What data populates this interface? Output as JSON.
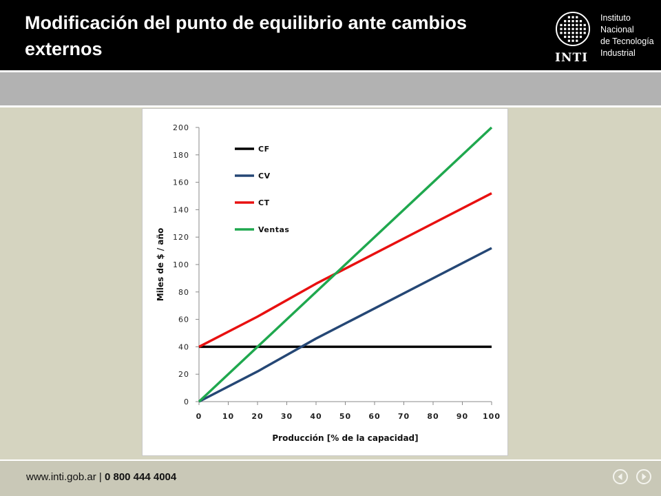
{
  "slide": {
    "title_line1": "Modificación del punto de equilibrio ante cambios",
    "title_line2": "externos"
  },
  "logo": {
    "mark": "INTI",
    "name_lines": [
      "Instituto",
      "Nacional",
      "de Tecnología",
      "Industrial"
    ]
  },
  "footer": {
    "url": "www.inti.gob.ar",
    "separator": "|",
    "phone": "0 800 444 4004",
    "prev_icon": "chevron-left-circle-icon",
    "next_icon": "chevron-right-circle-icon"
  },
  "chart_data": {
    "type": "line",
    "title": "",
    "xlabel": "Producción [% de la capacidad]",
    "ylabel": "Miles de $ / año",
    "xlim": [
      0,
      100
    ],
    "ylim": [
      0,
      200
    ],
    "x_ticks": [
      0,
      10,
      20,
      30,
      40,
      50,
      60,
      70,
      80,
      90,
      100
    ],
    "y_ticks": [
      0,
      20,
      40,
      60,
      80,
      100,
      120,
      140,
      160,
      180,
      200
    ],
    "grid": false,
    "legend_position": "top-left",
    "series": [
      {
        "name": "CF",
        "color": "#000000",
        "x": [
          0,
          100
        ],
        "y": [
          40,
          40
        ]
      },
      {
        "name": "CV",
        "color": "#254775",
        "x": [
          0,
          20,
          40,
          100
        ],
        "y": [
          0,
          22,
          46,
          112
        ]
      },
      {
        "name": "CT",
        "color": "#e81010",
        "x": [
          0,
          20,
          40,
          100
        ],
        "y": [
          40,
          62,
          86,
          152
        ]
      },
      {
        "name": "Ventas",
        "color": "#1fa84e",
        "x": [
          0,
          100
        ],
        "y": [
          0,
          200
        ]
      }
    ]
  }
}
